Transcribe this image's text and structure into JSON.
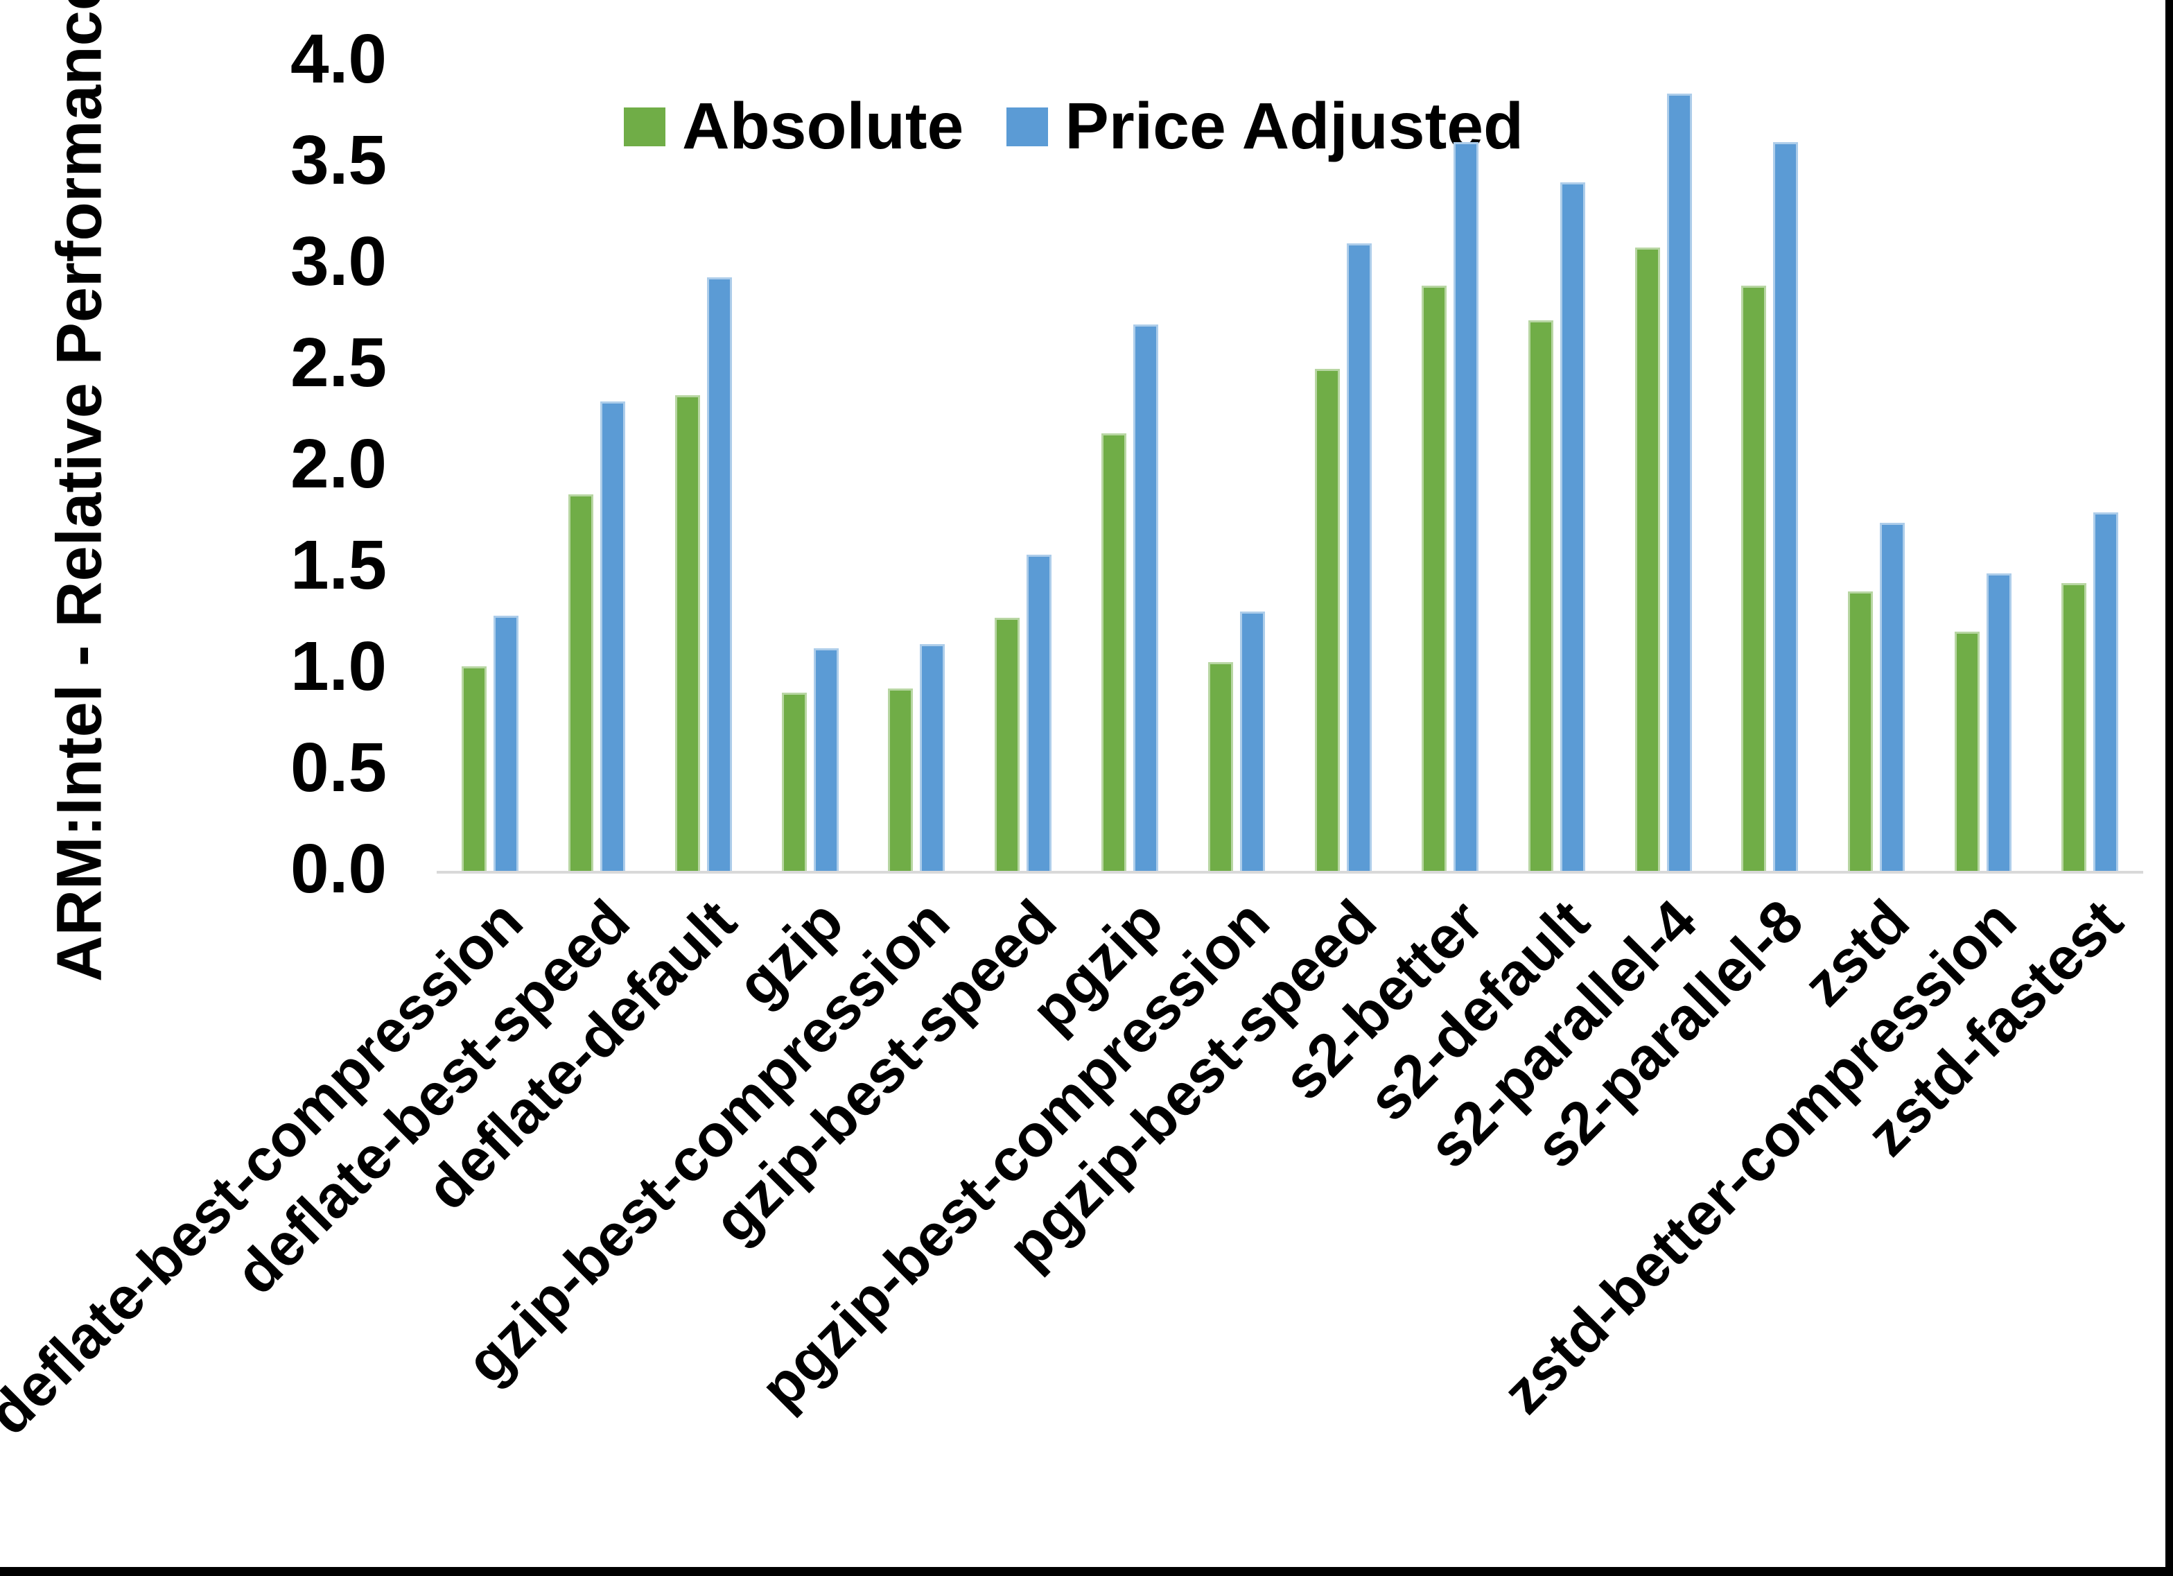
{
  "figure": {
    "y_axis_title": "ARM:Intel - Relative Performance"
  },
  "chart_data": {
    "type": "bar",
    "title": "",
    "xlabel": "",
    "ylabel": "ARM:Intel - Relative Performance",
    "ylim": [
      0.0,
      4.0
    ],
    "ytick_step": 0.5,
    "y_tick_labels": [
      "0.0",
      "0.5",
      "1.0",
      "1.5",
      "2.0",
      "2.5",
      "3.0",
      "3.5",
      "4.0"
    ],
    "grid": false,
    "legend_position": "top-center",
    "categories": [
      "deflate-best-compression",
      "deflate-best-speed",
      "deflate-default",
      "gzip",
      "gzip-best-compression",
      "gzip-best-speed",
      "pgzip",
      "pgzip-best-compression",
      "pgzip-best-speed",
      "s2-better",
      "s2-default",
      "s2-parallel-4",
      "s2-parallel-8",
      "zstd",
      "zstd-better-compression",
      "zstd-fastest"
    ],
    "series": [
      {
        "name": "Absolute",
        "color": "#70AD47",
        "values": [
          1.01,
          1.86,
          2.35,
          0.88,
          0.9,
          1.25,
          2.16,
          1.03,
          2.48,
          2.89,
          2.72,
          3.08,
          2.89,
          1.38,
          1.18,
          1.42
        ]
      },
      {
        "name": "Price Adjusted",
        "color": "#5B9BD5",
        "values": [
          1.26,
          2.32,
          2.93,
          1.1,
          1.12,
          1.56,
          2.7,
          1.28,
          3.1,
          3.6,
          3.4,
          3.84,
          3.6,
          1.72,
          1.47,
          1.77
        ]
      }
    ],
    "axis_line_color": "#D9D9D9"
  }
}
